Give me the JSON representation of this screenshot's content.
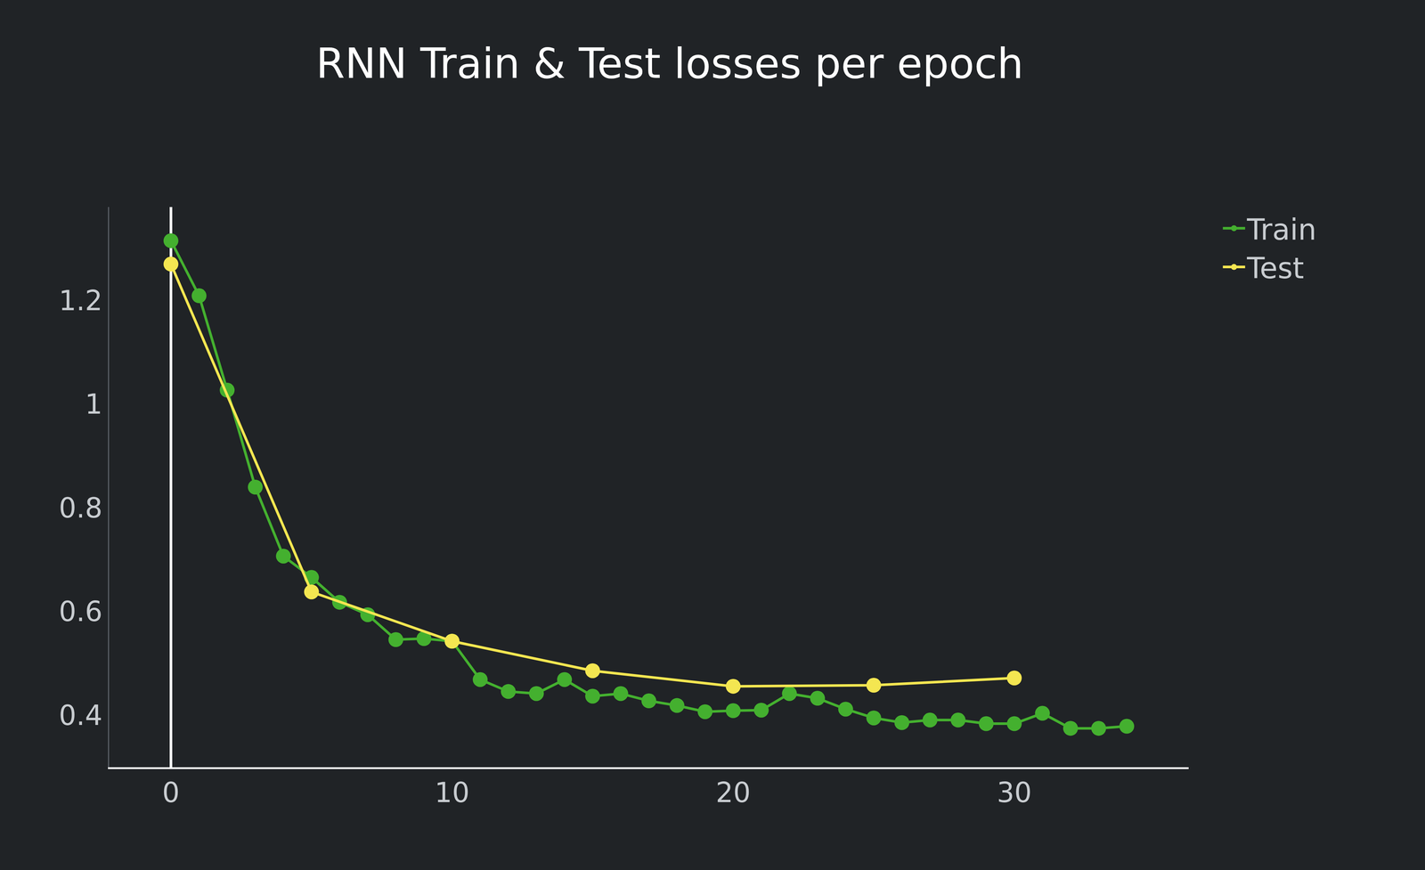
{
  "chart_data": {
    "type": "line",
    "title": "RNN Train & Test losses per epoch",
    "series": [
      {
        "name": "Train",
        "color": "#44b02f",
        "marker": "circle",
        "x": [
          0,
          1,
          2,
          3,
          4,
          5,
          6,
          7,
          8,
          9,
          10,
          11,
          12,
          13,
          14,
          15,
          16,
          17,
          18,
          19,
          20,
          21,
          22,
          23,
          24,
          25,
          26,
          27,
          28,
          29,
          30,
          31,
          32,
          33,
          34
        ],
        "values": [
          1.315,
          1.209,
          1.027,
          0.84,
          0.707,
          0.666,
          0.618,
          0.594,
          0.546,
          0.548,
          0.543,
          0.469,
          0.446,
          0.442,
          0.469,
          0.437,
          0.442,
          0.428,
          0.419,
          0.407,
          0.409,
          0.41,
          0.442,
          0.433,
          0.412,
          0.395,
          0.386,
          0.391,
          0.391,
          0.384,
          0.384,
          0.404,
          0.375,
          0.375,
          0.379
        ]
      },
      {
        "name": "Test",
        "color": "#f4e651",
        "marker": "circle",
        "x": [
          0,
          5,
          10,
          15,
          20,
          25,
          30
        ],
        "values": [
          1.27,
          0.638,
          0.543,
          0.486,
          0.456,
          0.458,
          0.472
        ]
      }
    ],
    "xlim": [
      -2.2,
      36.2
    ],
    "xticks": [
      0,
      10,
      20,
      30
    ],
    "ylim": [
      0.3,
      1.38
    ],
    "yticks": [
      0.4,
      0.6,
      0.8,
      1,
      1.2
    ],
    "grid": false,
    "legend": "top right"
  }
}
